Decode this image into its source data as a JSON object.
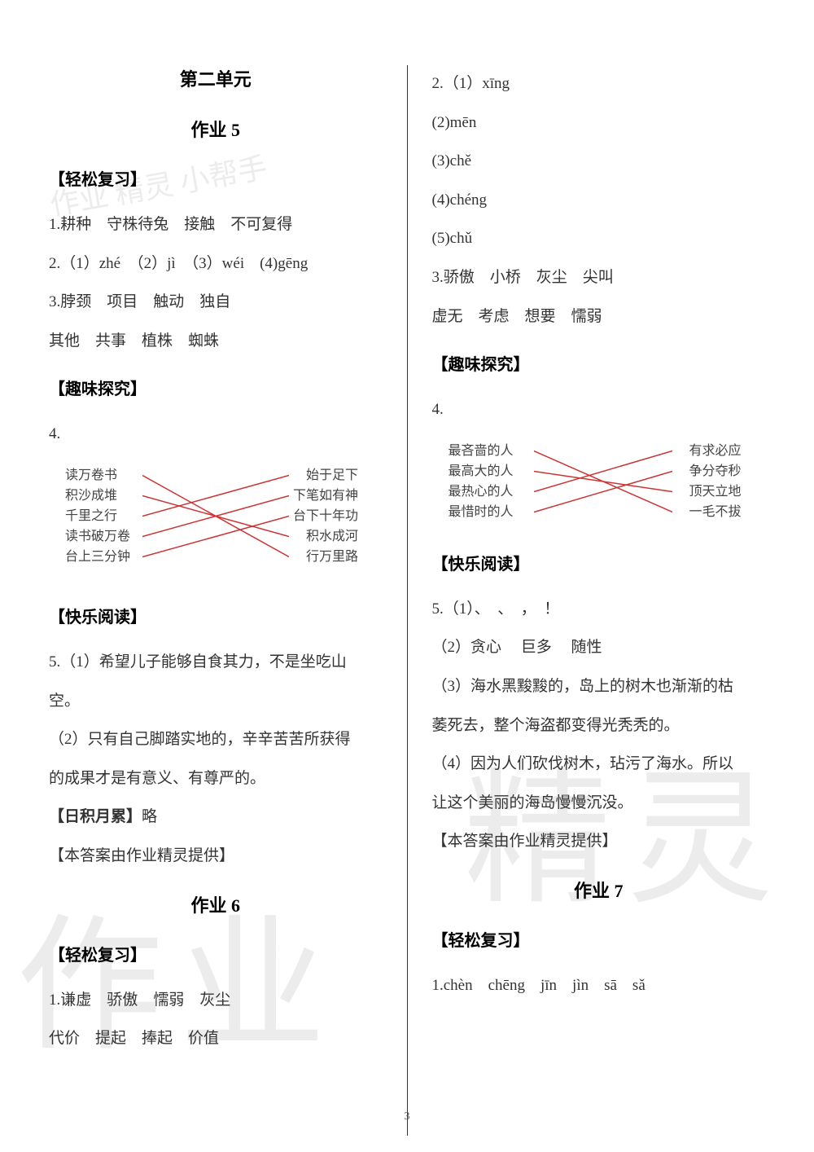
{
  "page_number": "3",
  "watermarks": {
    "top_left": "作业\n精灵\n小帮手",
    "bottom_left": "作业",
    "bottom_right": "精灵"
  },
  "left_column": {
    "unit_title": "第二单元",
    "homework_5": {
      "title": "作业 5",
      "section1_header": "【轻松复习】",
      "line1": "1.耕种　守株待兔　接触　不可复得",
      "line2": "2.（1）zhé　（2）jì　（3）wéi　(4)gēng",
      "line3": "3.脖颈　项目　触动　独自",
      "line4": "其他　共事　植株　蜘蛛",
      "section2_header": "【趣味探究】",
      "q4_label": "4.",
      "matching": {
        "left_items": [
          "读万卷书",
          "积沙成堆",
          "千里之行",
          "读书破万卷",
          "台上三分钟"
        ],
        "right_items": [
          "始于足下",
          "下笔如有神",
          "台下十年功",
          "积水成河",
          "行万里路"
        ],
        "connections": [
          [
            0,
            4
          ],
          [
            1,
            3
          ],
          [
            2,
            0
          ],
          [
            3,
            1
          ],
          [
            4,
            2
          ]
        ],
        "line_color": "#cc3333",
        "line_width": 1.5
      },
      "section3_header": "【快乐阅读】",
      "line5_1": "5.（1）希望儿子能够自食其力，不是坐吃山",
      "line5_2": "空。",
      "line5_3": "（2）只有自己脚踏实地的，辛辛苦苦所获得",
      "line5_4": "的成果才是有意义、有尊严的。",
      "section4_header_text": "【日积月累】",
      "section4_suffix": "略",
      "credit": "【本答案由作业精灵提供】"
    },
    "homework_6": {
      "title": "作业 6",
      "section1_header": "【轻松复习】",
      "line1": "1.谦虚　骄傲　懦弱　灰尘",
      "line2": "代价　提起　捧起　价值"
    }
  },
  "right_column": {
    "line2_1": "2.（1）xīng",
    "line2_2": "(2)mēn",
    "line2_3": "(3)chě",
    "line2_4": "(4)chéng",
    "line2_5": "(5)chǔ",
    "line3_1": "3.骄傲　小桥　灰尘　尖叫",
    "line3_2": "虚无　考虑　想要　懦弱",
    "section2_header": "【趣味探究】",
    "q4_label": "4.",
    "matching": {
      "left_items": [
        "最吝啬的人",
        "最高大的人",
        "最热心的人",
        "最惜时的人"
      ],
      "right_items": [
        "有求必应",
        "争分夺秒",
        "顶天立地",
        "一毛不拔"
      ],
      "connections": [
        [
          0,
          3
        ],
        [
          1,
          2
        ],
        [
          2,
          0
        ],
        [
          3,
          1
        ]
      ],
      "line_color": "#cc3333",
      "line_width": 1.5
    },
    "section3_header": "【快乐阅读】",
    "line5_1": "5.（1）、　、　，　！",
    "line5_2": "（2）贪心　 巨多 　随性",
    "line5_3": "（3）海水黑黢黢的，岛上的树木也渐渐的枯",
    "line5_4": "萎死去，整个海盗都变得光秃秃的。",
    "line5_5": "（4）因为人们砍伐树木，玷污了海水。所以",
    "line5_6": "让这个美丽的海岛慢慢沉没。",
    "credit": "【本答案由作业精灵提供】",
    "homework_7": {
      "title": "作业 7",
      "section1_header": "【轻松复习】",
      "line1": "1.chèn　chēng　jīn　jìn　sā　sǎ"
    }
  },
  "styling": {
    "background_color": "#ffffff",
    "text_color": "#333333",
    "header_color": "#000000",
    "font_size_body": 19,
    "font_size_header": 20,
    "font_size_title": 22,
    "line_height": 2.4,
    "divider_color": "#333333"
  }
}
